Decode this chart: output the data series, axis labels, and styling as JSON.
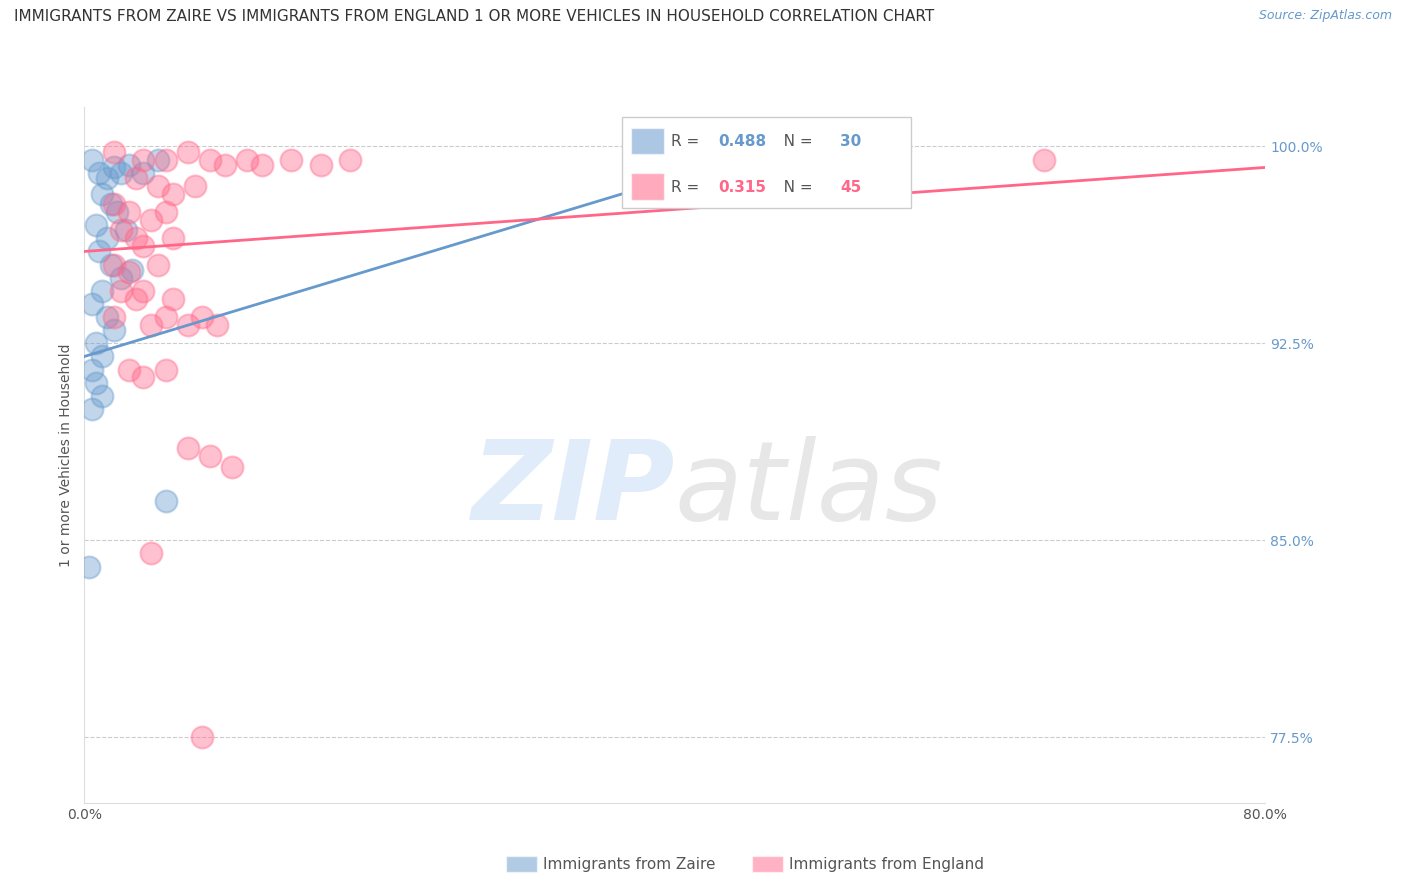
{
  "title": "IMMIGRANTS FROM ZAIRE VS IMMIGRANTS FROM ENGLAND 1 OR MORE VEHICLES IN HOUSEHOLD CORRELATION CHART",
  "source": "Source: ZipAtlas.com",
  "ylabel": "1 or more Vehicles in Household",
  "xlim": [
    0.0,
    80.0
  ],
  "ylim": [
    75.0,
    101.5
  ],
  "xticks": [
    0.0,
    10.0,
    20.0,
    30.0,
    40.0,
    50.0,
    60.0,
    70.0,
    80.0
  ],
  "yticks": [
    77.5,
    85.0,
    92.5,
    100.0
  ],
  "ytick_labels": [
    "77.5%",
    "85.0%",
    "92.5%",
    "100.0%"
  ],
  "xtick_labels": [
    "0.0%",
    "",
    "",
    "",
    "",
    "",
    "",
    "",
    "80.0%"
  ],
  "legend_labels": [
    "Immigrants from Zaire",
    "Immigrants from England"
  ],
  "legend_r_n": [
    {
      "R": 0.488,
      "N": 30
    },
    {
      "R": 0.315,
      "N": 45
    }
  ],
  "zaire_color": "#6699cc",
  "england_color": "#ff6688",
  "zaire_points": [
    [
      0.5,
      99.5
    ],
    [
      1.0,
      99.0
    ],
    [
      1.5,
      98.8
    ],
    [
      2.0,
      99.2
    ],
    [
      2.5,
      99.0
    ],
    [
      3.0,
      99.3
    ],
    [
      4.0,
      99.0
    ],
    [
      5.0,
      99.5
    ],
    [
      1.2,
      98.2
    ],
    [
      1.8,
      97.8
    ],
    [
      2.2,
      97.5
    ],
    [
      0.8,
      97.0
    ],
    [
      1.5,
      96.5
    ],
    [
      2.8,
      96.8
    ],
    [
      1.0,
      96.0
    ],
    [
      1.8,
      95.5
    ],
    [
      2.5,
      95.0
    ],
    [
      3.2,
      95.3
    ],
    [
      1.2,
      94.5
    ],
    [
      0.5,
      94.0
    ],
    [
      1.5,
      93.5
    ],
    [
      2.0,
      93.0
    ],
    [
      0.8,
      92.5
    ],
    [
      1.2,
      92.0
    ],
    [
      0.5,
      91.5
    ],
    [
      0.8,
      91.0
    ],
    [
      1.2,
      90.5
    ],
    [
      0.5,
      90.0
    ],
    [
      5.5,
      86.5
    ],
    [
      0.3,
      84.0
    ]
  ],
  "england_points": [
    [
      2.0,
      99.8
    ],
    [
      4.0,
      99.5
    ],
    [
      5.5,
      99.5
    ],
    [
      7.0,
      99.8
    ],
    [
      8.5,
      99.5
    ],
    [
      9.5,
      99.3
    ],
    [
      11.0,
      99.5
    ],
    [
      12.0,
      99.3
    ],
    [
      14.0,
      99.5
    ],
    [
      16.0,
      99.3
    ],
    [
      18.0,
      99.5
    ],
    [
      3.5,
      98.8
    ],
    [
      5.0,
      98.5
    ],
    [
      6.0,
      98.2
    ],
    [
      7.5,
      98.5
    ],
    [
      2.0,
      97.8
    ],
    [
      3.0,
      97.5
    ],
    [
      4.5,
      97.2
    ],
    [
      5.5,
      97.5
    ],
    [
      2.5,
      96.8
    ],
    [
      3.5,
      96.5
    ],
    [
      4.0,
      96.2
    ],
    [
      6.0,
      96.5
    ],
    [
      2.0,
      95.5
    ],
    [
      3.0,
      95.2
    ],
    [
      5.0,
      95.5
    ],
    [
      2.5,
      94.5
    ],
    [
      3.5,
      94.2
    ],
    [
      4.0,
      94.5
    ],
    [
      6.0,
      94.2
    ],
    [
      2.0,
      93.5
    ],
    [
      4.5,
      93.2
    ],
    [
      5.5,
      93.5
    ],
    [
      7.0,
      93.2
    ],
    [
      8.0,
      93.5
    ],
    [
      9.0,
      93.2
    ],
    [
      3.0,
      91.5
    ],
    [
      4.0,
      91.2
    ],
    [
      5.5,
      91.5
    ],
    [
      7.0,
      88.5
    ],
    [
      8.5,
      88.2
    ],
    [
      10.0,
      87.8
    ],
    [
      65.0,
      99.5
    ],
    [
      4.5,
      84.5
    ],
    [
      8.0,
      77.5
    ]
  ],
  "zaire_trend_x": [
    0.0,
    50.0
  ],
  "zaire_trend_y": [
    92.0,
    100.5
  ],
  "england_trend_x": [
    0.0,
    80.0
  ],
  "england_trend_y": [
    96.0,
    99.2
  ],
  "background_color": "#ffffff",
  "grid_color": "#cccccc",
  "title_fontsize": 11,
  "axis_label_fontsize": 10,
  "tick_fontsize": 10,
  "source_color": "#6699cc",
  "ytick_color": "#6699cc"
}
